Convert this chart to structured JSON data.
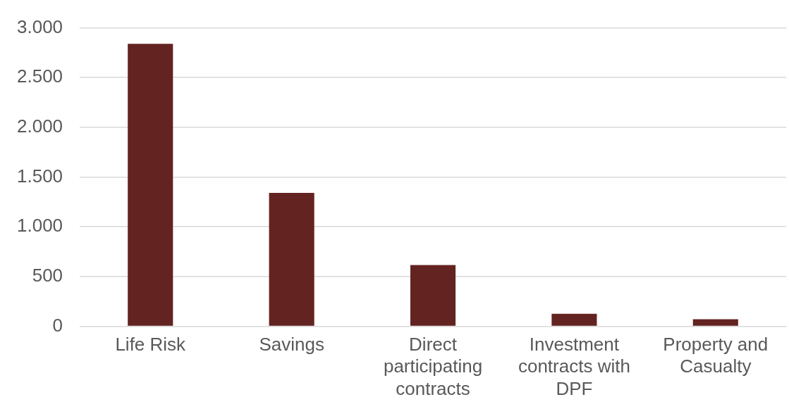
{
  "chart_data": {
    "type": "bar",
    "categories": [
      "Life Risk",
      "Savings",
      "Direct participating contracts",
      "Investment contracts with DPF",
      "Property and Casualty"
    ],
    "values": [
      2840,
      1340,
      615,
      125,
      70
    ],
    "color": "#632321",
    "ylim": [
      0,
      3000
    ],
    "yticks": [
      {
        "value": 0,
        "label": "0"
      },
      {
        "value": 500,
        "label": "500"
      },
      {
        "value": 1000,
        "label": "1.000"
      },
      {
        "value": 1500,
        "label": "1.500"
      },
      {
        "value": 2000,
        "label": "2.000"
      },
      {
        "value": 2500,
        "label": "2.500"
      },
      {
        "value": 3000,
        "label": "3.000"
      }
    ],
    "grid": "y"
  }
}
